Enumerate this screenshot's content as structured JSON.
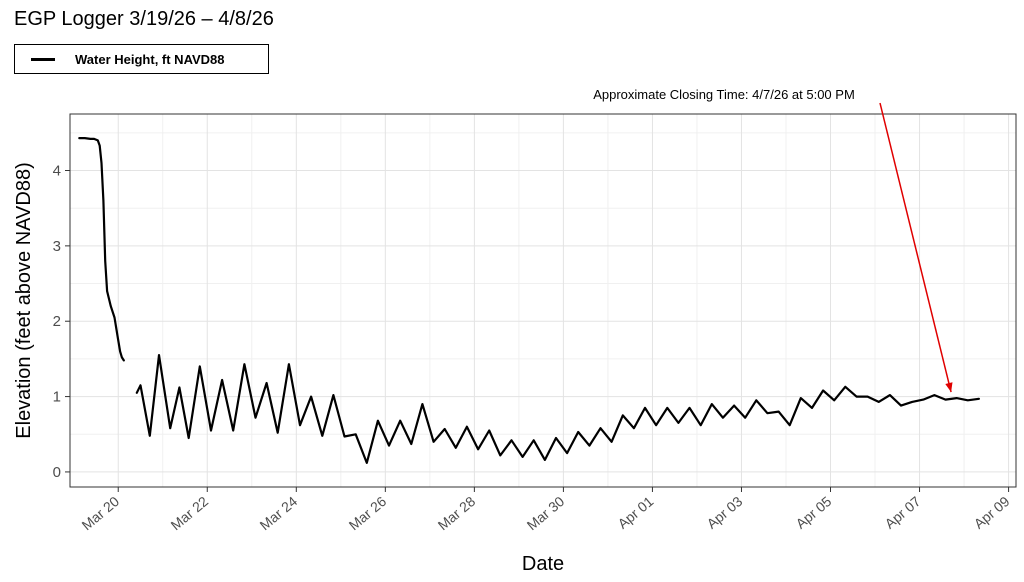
{
  "chart_data": {
    "type": "line",
    "title": "EGP Logger 3/19/26 – 4/8/26",
    "xlabel": "Date",
    "ylabel": "Elevation (feet above NAVD88)",
    "x_axis_type": "date",
    "xlim": [
      "2026-03-18T22:00",
      "2026-04-09T04:00"
    ],
    "ylim": [
      -0.2,
      4.75
    ],
    "grid": true,
    "legend_position": "top-left",
    "x_ticks": [
      {
        "date": "2026-03-20",
        "label": "Mar 20"
      },
      {
        "date": "2026-03-22",
        "label": "Mar 22"
      },
      {
        "date": "2026-03-24",
        "label": "Mar 24"
      },
      {
        "date": "2026-03-26",
        "label": "Mar 26"
      },
      {
        "date": "2026-03-28",
        "label": "Mar 28"
      },
      {
        "date": "2026-03-30",
        "label": "Mar 30"
      },
      {
        "date": "2026-04-01",
        "label": "Apr 01"
      },
      {
        "date": "2026-04-03",
        "label": "Apr 03"
      },
      {
        "date": "2026-04-05",
        "label": "Apr 05"
      },
      {
        "date": "2026-04-07",
        "label": "Apr 07"
      },
      {
        "date": "2026-04-09",
        "label": "Apr 09"
      }
    ],
    "y_ticks": [
      0,
      1,
      2,
      3,
      4
    ],
    "line_color": "#000000",
    "annotation": {
      "text": "Approximate Closing Time: 4/7/26 at 5:00 PM",
      "target_date": "2026-04-07T17:00",
      "target_value": 0.98,
      "arrow_color": "#e00000"
    },
    "series": [
      {
        "name": "Water Height, ft NAVD88",
        "segments": [
          {
            "x": [
              "2026-03-19T03:00",
              "2026-03-19T06:00",
              "2026-03-19T09:00",
              "2026-03-19T11:00",
              "2026-03-19T13:00",
              "2026-03-19T14:00",
              "2026-03-19T15:00",
              "2026-03-19T16:00",
              "2026-03-19T17:00",
              "2026-03-19T18:00",
              "2026-03-19T20:00",
              "2026-03-19T22:00",
              "2026-03-20T00:00",
              "2026-03-20T01:00",
              "2026-03-20T02:00",
              "2026-03-20T03:00"
            ],
            "y": [
              4.43,
              4.43,
              4.42,
              4.42,
              4.4,
              4.33,
              4.1,
              3.6,
              2.8,
              2.4,
              2.2,
              2.05,
              1.75,
              1.6,
              1.52,
              1.48
            ]
          },
          {
            "x": [
              "2026-03-20T10:00",
              "2026-03-20T12:00",
              "2026-03-20T17:00",
              "2026-03-20T22:00",
              "2026-03-21T04:00",
              "2026-03-21T09:00",
              "2026-03-21T14:00",
              "2026-03-21T20:00",
              "2026-03-22T02:00",
              "2026-03-22T08:00",
              "2026-03-22T14:00",
              "2026-03-22T20:00",
              "2026-03-23T02:00",
              "2026-03-23T08:00",
              "2026-03-23T14:00",
              "2026-03-23T20:00",
              "2026-03-24T02:00",
              "2026-03-24T08:00",
              "2026-03-24T14:00",
              "2026-03-24T20:00",
              "2026-03-25T02:00",
              "2026-03-25T08:00",
              "2026-03-25T14:00",
              "2026-03-25T20:00",
              "2026-03-26T02:00",
              "2026-03-26T08:00",
              "2026-03-26T14:00",
              "2026-03-26T20:00",
              "2026-03-27T02:00",
              "2026-03-27T08:00",
              "2026-03-27T14:00",
              "2026-03-27T20:00",
              "2026-03-28T02:00",
              "2026-03-28T08:00",
              "2026-03-28T14:00",
              "2026-03-28T20:00",
              "2026-03-29T02:00",
              "2026-03-29T08:00",
              "2026-03-29T14:00",
              "2026-03-29T20:00",
              "2026-03-30T02:00",
              "2026-03-30T08:00",
              "2026-03-30T14:00",
              "2026-03-30T20:00",
              "2026-03-31T02:00",
              "2026-03-31T08:00",
              "2026-03-31T14:00",
              "2026-03-31T20:00",
              "2026-04-01T02:00",
              "2026-04-01T08:00",
              "2026-04-01T14:00",
              "2026-04-01T20:00",
              "2026-04-02T02:00",
              "2026-04-02T08:00",
              "2026-04-02T14:00",
              "2026-04-02T20:00",
              "2026-04-03T02:00",
              "2026-04-03T08:00",
              "2026-04-03T14:00",
              "2026-04-03T20:00",
              "2026-04-04T02:00",
              "2026-04-04T08:00",
              "2026-04-04T14:00",
              "2026-04-04T20:00",
              "2026-04-05T02:00",
              "2026-04-05T08:00",
              "2026-04-05T14:00",
              "2026-04-05T20:00",
              "2026-04-06T02:00",
              "2026-04-06T08:00",
              "2026-04-06T14:00",
              "2026-04-06T20:00",
              "2026-04-07T02:00",
              "2026-04-07T08:00",
              "2026-04-07T14:00",
              "2026-04-07T20:00",
              "2026-04-08T02:00",
              "2026-04-08T08:00"
            ],
            "y": [
              1.05,
              1.15,
              0.48,
              1.55,
              0.58,
              1.12,
              0.45,
              1.4,
              0.55,
              1.22,
              0.55,
              1.43,
              0.72,
              1.18,
              0.52,
              1.43,
              0.62,
              1.0,
              0.48,
              1.02,
              0.47,
              0.5,
              0.12,
              0.68,
              0.35,
              0.68,
              0.37,
              0.9,
              0.4,
              0.57,
              0.32,
              0.6,
              0.3,
              0.55,
              0.22,
              0.42,
              0.2,
              0.42,
              0.16,
              0.45,
              0.25,
              0.53,
              0.35,
              0.58,
              0.4,
              0.75,
              0.58,
              0.85,
              0.62,
              0.85,
              0.65,
              0.85,
              0.62,
              0.9,
              0.72,
              0.88,
              0.72,
              0.95,
              0.78,
              0.8,
              0.62,
              0.98,
              0.85,
              1.08,
              0.95,
              1.13,
              1.0,
              1.0,
              0.93,
              1.02,
              0.88,
              0.93,
              0.96,
              1.02,
              0.96,
              0.98,
              0.95,
              0.97
            ]
          }
        ]
      }
    ]
  }
}
